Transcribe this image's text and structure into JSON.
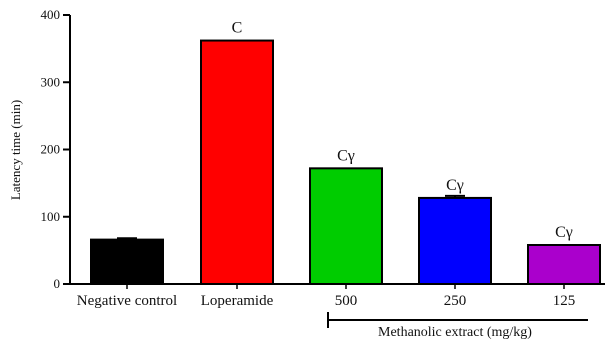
{
  "chart_data": {
    "type": "bar",
    "ylabel": "Latency time (min)",
    "ylim": [
      0,
      400
    ],
    "yticks": [
      0,
      100,
      200,
      300,
      400
    ],
    "categories": [
      "Negative control",
      "Loperamide",
      "500",
      "250",
      "125"
    ],
    "values": [
      66,
      362,
      172,
      128,
      58
    ],
    "errors": [
      2,
      0,
      0,
      3,
      0
    ],
    "colors": [
      "#000000",
      "#ff0000",
      "#00cc00",
      "#0000ff",
      "#aa00cc"
    ],
    "annotations": [
      "",
      "C",
      "Cγ",
      "Cγ",
      "Cγ"
    ],
    "group_label": "Methanolic extract (mg/kg)"
  }
}
